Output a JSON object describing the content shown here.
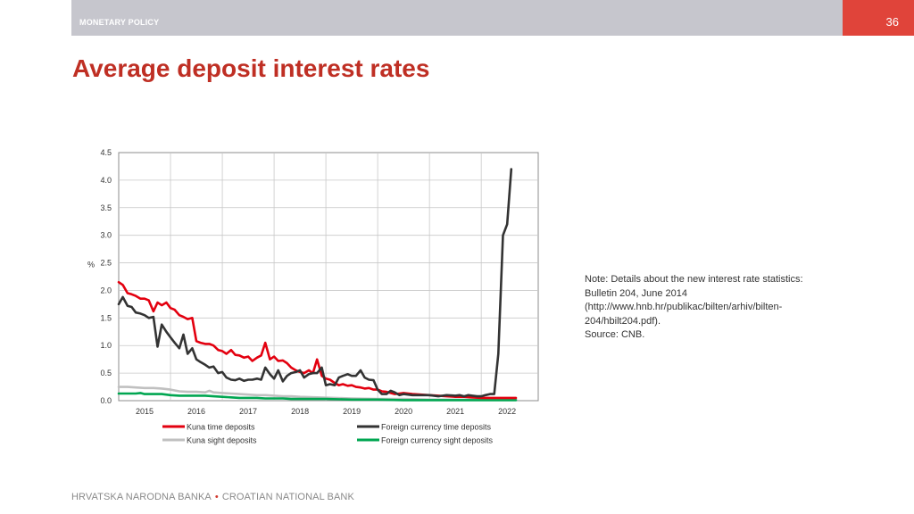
{
  "header": {
    "section": "MONETARY POLICY",
    "page_number": "36"
  },
  "title": "Average deposit interest rates",
  "note": {
    "lines": [
      "Note: Details about the new interest rate statistics:",
      "Bulletin 204, June 2014",
      "(http://www.hnb.hr/publikac/bilten/arhiv/bilten-",
      "204/hbilt204.pdf).",
      "Source: CNB."
    ]
  },
  "footer": {
    "left": "HRVATSKA NARODNA BANKA",
    "separator": "•",
    "right": "CROATIAN NATIONAL BANK"
  },
  "chart_data": {
    "type": "line",
    "title": "",
    "xlabel": "",
    "ylabel": "%",
    "xlim": [
      2014.5,
      2022.6
    ],
    "ylim": [
      0,
      4.5
    ],
    "yticks": [
      "0.0",
      "0.5",
      "1.0",
      "1.5",
      "2.0",
      "2.5",
      "3.0",
      "3.5",
      "4.0",
      "4.5"
    ],
    "xticks": [
      "2015",
      "2016",
      "2017",
      "2018",
      "2019",
      "2020",
      "2021",
      "2022"
    ],
    "grid": true,
    "legend_position": "bottom",
    "series": [
      {
        "name": "Kuna time deposits",
        "color": "#e3000f",
        "points": [
          [
            2014.5,
            2.15
          ],
          [
            2014.58,
            2.1
          ],
          [
            2014.67,
            1.95
          ],
          [
            2014.75,
            1.93
          ],
          [
            2014.83,
            1.9
          ],
          [
            2014.92,
            1.85
          ],
          [
            2015.0,
            1.85
          ],
          [
            2015.08,
            1.82
          ],
          [
            2015.17,
            1.62
          ],
          [
            2015.25,
            1.78
          ],
          [
            2015.33,
            1.73
          ],
          [
            2015.42,
            1.78
          ],
          [
            2015.5,
            1.68
          ],
          [
            2015.58,
            1.65
          ],
          [
            2015.67,
            1.55
          ],
          [
            2015.75,
            1.52
          ],
          [
            2015.83,
            1.48
          ],
          [
            2015.92,
            1.5
          ],
          [
            2016.0,
            1.08
          ],
          [
            2016.08,
            1.05
          ],
          [
            2016.17,
            1.03
          ],
          [
            2016.25,
            1.03
          ],
          [
            2016.33,
            1.0
          ],
          [
            2016.42,
            0.92
          ],
          [
            2016.5,
            0.9
          ],
          [
            2016.58,
            0.85
          ],
          [
            2016.67,
            0.92
          ],
          [
            2016.75,
            0.83
          ],
          [
            2016.83,
            0.82
          ],
          [
            2016.92,
            0.78
          ],
          [
            2017.0,
            0.8
          ],
          [
            2017.08,
            0.72
          ],
          [
            2017.17,
            0.78
          ],
          [
            2017.25,
            0.82
          ],
          [
            2017.33,
            1.05
          ],
          [
            2017.42,
            0.75
          ],
          [
            2017.5,
            0.8
          ],
          [
            2017.58,
            0.72
          ],
          [
            2017.67,
            0.73
          ],
          [
            2017.75,
            0.68
          ],
          [
            2017.83,
            0.6
          ],
          [
            2017.92,
            0.55
          ],
          [
            2018.0,
            0.52
          ],
          [
            2018.08,
            0.5
          ],
          [
            2018.17,
            0.55
          ],
          [
            2018.25,
            0.5
          ],
          [
            2018.33,
            0.75
          ],
          [
            2018.42,
            0.45
          ],
          [
            2018.5,
            0.4
          ],
          [
            2018.58,
            0.38
          ],
          [
            2018.67,
            0.32
          ],
          [
            2018.75,
            0.28
          ],
          [
            2018.83,
            0.3
          ],
          [
            2018.92,
            0.27
          ],
          [
            2019.0,
            0.28
          ],
          [
            2019.08,
            0.25
          ],
          [
            2019.17,
            0.24
          ],
          [
            2019.25,
            0.22
          ],
          [
            2019.33,
            0.23
          ],
          [
            2019.42,
            0.2
          ],
          [
            2019.5,
            0.2
          ],
          [
            2019.58,
            0.17
          ],
          [
            2019.67,
            0.16
          ],
          [
            2019.75,
            0.14
          ],
          [
            2019.83,
            0.12
          ],
          [
            2019.92,
            0.13
          ],
          [
            2020.0,
            0.14
          ],
          [
            2020.17,
            0.12
          ],
          [
            2020.33,
            0.11
          ],
          [
            2020.5,
            0.1
          ],
          [
            2020.67,
            0.09
          ],
          [
            2020.83,
            0.08
          ],
          [
            2021.0,
            0.07
          ],
          [
            2021.17,
            0.07
          ],
          [
            2021.33,
            0.06
          ],
          [
            2021.5,
            0.05
          ],
          [
            2021.67,
            0.05
          ],
          [
            2021.83,
            0.05
          ],
          [
            2022.0,
            0.05
          ],
          [
            2022.17,
            0.05
          ],
          [
            2022.17,
            0.05
          ]
        ]
      },
      {
        "name": "Foreign currency time deposits",
        "color": "#333333",
        "points": [
          [
            2014.5,
            1.75
          ],
          [
            2014.58,
            1.88
          ],
          [
            2014.67,
            1.72
          ],
          [
            2014.75,
            1.7
          ],
          [
            2014.83,
            1.6
          ],
          [
            2014.92,
            1.58
          ],
          [
            2015.0,
            1.55
          ],
          [
            2015.08,
            1.5
          ],
          [
            2015.17,
            1.52
          ],
          [
            2015.25,
            0.98
          ],
          [
            2015.33,
            1.38
          ],
          [
            2015.42,
            1.25
          ],
          [
            2015.5,
            1.15
          ],
          [
            2015.58,
            1.05
          ],
          [
            2015.67,
            0.95
          ],
          [
            2015.75,
            1.2
          ],
          [
            2015.83,
            0.85
          ],
          [
            2015.92,
            0.95
          ],
          [
            2016.0,
            0.75
          ],
          [
            2016.08,
            0.7
          ],
          [
            2016.17,
            0.65
          ],
          [
            2016.25,
            0.6
          ],
          [
            2016.33,
            0.62
          ],
          [
            2016.42,
            0.5
          ],
          [
            2016.5,
            0.52
          ],
          [
            2016.58,
            0.42
          ],
          [
            2016.67,
            0.38
          ],
          [
            2016.75,
            0.37
          ],
          [
            2016.83,
            0.4
          ],
          [
            2016.92,
            0.36
          ],
          [
            2017.0,
            0.38
          ],
          [
            2017.08,
            0.38
          ],
          [
            2017.17,
            0.4
          ],
          [
            2017.25,
            0.38
          ],
          [
            2017.33,
            0.6
          ],
          [
            2017.42,
            0.48
          ],
          [
            2017.5,
            0.4
          ],
          [
            2017.58,
            0.55
          ],
          [
            2017.67,
            0.35
          ],
          [
            2017.75,
            0.45
          ],
          [
            2017.83,
            0.5
          ],
          [
            2017.92,
            0.52
          ],
          [
            2018.0,
            0.55
          ],
          [
            2018.08,
            0.42
          ],
          [
            2018.17,
            0.48
          ],
          [
            2018.25,
            0.5
          ],
          [
            2018.33,
            0.5
          ],
          [
            2018.42,
            0.6
          ],
          [
            2018.5,
            0.28
          ],
          [
            2018.58,
            0.3
          ],
          [
            2018.67,
            0.28
          ],
          [
            2018.75,
            0.42
          ],
          [
            2018.83,
            0.45
          ],
          [
            2018.92,
            0.48
          ],
          [
            2019.0,
            0.45
          ],
          [
            2019.08,
            0.45
          ],
          [
            2019.17,
            0.55
          ],
          [
            2019.25,
            0.42
          ],
          [
            2019.33,
            0.38
          ],
          [
            2019.42,
            0.37
          ],
          [
            2019.5,
            0.2
          ],
          [
            2019.58,
            0.12
          ],
          [
            2019.67,
            0.12
          ],
          [
            2019.75,
            0.18
          ],
          [
            2019.83,
            0.15
          ],
          [
            2019.92,
            0.1
          ],
          [
            2020.0,
            0.12
          ],
          [
            2020.17,
            0.1
          ],
          [
            2020.33,
            0.1
          ],
          [
            2020.5,
            0.1
          ],
          [
            2020.67,
            0.08
          ],
          [
            2020.83,
            0.1
          ],
          [
            2021.0,
            0.09
          ],
          [
            2021.08,
            0.1
          ],
          [
            2021.17,
            0.08
          ],
          [
            2021.25,
            0.1
          ],
          [
            2021.33,
            0.09
          ],
          [
            2021.42,
            0.08
          ],
          [
            2021.5,
            0.08
          ],
          [
            2021.58,
            0.1
          ],
          [
            2021.67,
            0.12
          ],
          [
            2021.75,
            0.12
          ],
          [
            2021.83,
            0.85
          ],
          [
            2021.92,
            3.0
          ],
          [
            2022.0,
            3.2
          ],
          [
            2022.08,
            4.2
          ]
        ]
      },
      {
        "name": "Kuna sight deposits",
        "color": "#c0c0c0",
        "points": [
          [
            2014.5,
            0.25
          ],
          [
            2014.67,
            0.25
          ],
          [
            2014.83,
            0.24
          ],
          [
            2015.0,
            0.23
          ],
          [
            2015.17,
            0.23
          ],
          [
            2015.33,
            0.22
          ],
          [
            2015.5,
            0.2
          ],
          [
            2015.67,
            0.17
          ],
          [
            2015.83,
            0.16
          ],
          [
            2016.0,
            0.16
          ],
          [
            2016.17,
            0.15
          ],
          [
            2016.25,
            0.18
          ],
          [
            2016.33,
            0.15
          ],
          [
            2016.5,
            0.14
          ],
          [
            2016.67,
            0.13
          ],
          [
            2016.83,
            0.12
          ],
          [
            2017.0,
            0.11
          ],
          [
            2017.17,
            0.1
          ],
          [
            2017.33,
            0.1
          ],
          [
            2017.5,
            0.09
          ],
          [
            2017.67,
            0.08
          ],
          [
            2017.83,
            0.08
          ],
          [
            2018.0,
            0.07
          ],
          [
            2018.33,
            0.06
          ],
          [
            2018.67,
            0.05
          ],
          [
            2019.0,
            0.04
          ],
          [
            2019.5,
            0.03
          ],
          [
            2020.0,
            0.03
          ],
          [
            2020.5,
            0.02
          ],
          [
            2021.0,
            0.02
          ],
          [
            2021.5,
            0.02
          ],
          [
            2022.17,
            0.02
          ]
        ]
      },
      {
        "name": "Foreign currency sight deposits",
        "color": "#00a651",
        "points": [
          [
            2014.5,
            0.13
          ],
          [
            2014.67,
            0.13
          ],
          [
            2014.83,
            0.13
          ],
          [
            2014.92,
            0.14
          ],
          [
            2015.0,
            0.12
          ],
          [
            2015.17,
            0.12
          ],
          [
            2015.33,
            0.12
          ],
          [
            2015.5,
            0.1
          ],
          [
            2015.67,
            0.09
          ],
          [
            2015.83,
            0.09
          ],
          [
            2016.0,
            0.09
          ],
          [
            2016.17,
            0.09
          ],
          [
            2016.33,
            0.08
          ],
          [
            2016.5,
            0.07
          ],
          [
            2016.67,
            0.06
          ],
          [
            2016.83,
            0.05
          ],
          [
            2017.0,
            0.05
          ],
          [
            2017.17,
            0.05
          ],
          [
            2017.33,
            0.04
          ],
          [
            2017.5,
            0.04
          ],
          [
            2017.67,
            0.04
          ],
          [
            2017.83,
            0.03
          ],
          [
            2018.0,
            0.03
          ],
          [
            2018.5,
            0.03
          ],
          [
            2019.0,
            0.02
          ],
          [
            2019.5,
            0.02
          ],
          [
            2020.0,
            0.01
          ],
          [
            2020.5,
            0.01
          ],
          [
            2021.0,
            0.01
          ],
          [
            2021.5,
            0.01
          ],
          [
            2022.17,
            0.01
          ]
        ]
      }
    ]
  }
}
